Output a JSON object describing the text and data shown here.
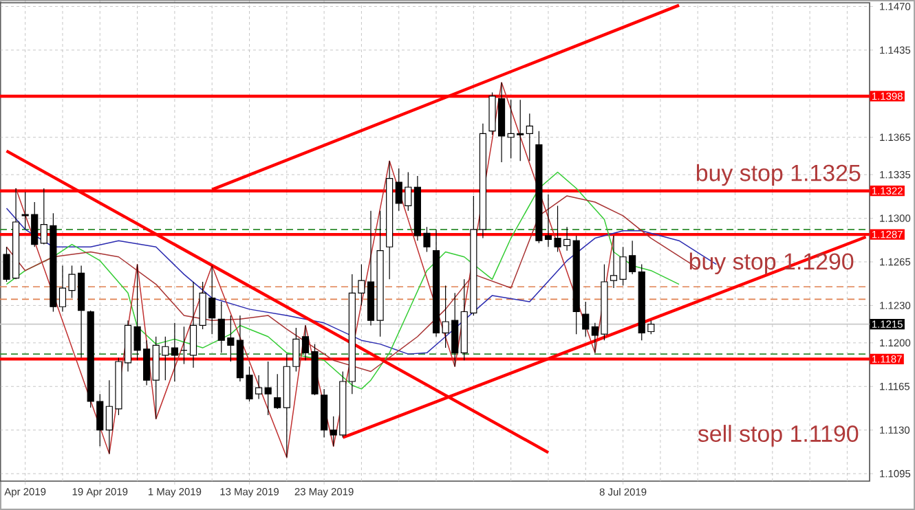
{
  "chart_data": {
    "type": "candlestick",
    "categories": [
      null,
      null,
      "Apr 2019",
      null,
      null,
      null,
      null,
      null,
      null,
      null,
      "19 Apr 2019",
      null,
      null,
      null,
      null,
      null,
      null,
      null,
      "1 May 2019",
      null,
      null,
      null,
      null,
      null,
      null,
      null,
      "13 May 2019",
      null,
      null,
      null,
      null,
      null,
      null,
      null,
      "23 May 2019",
      null,
      null,
      null,
      null,
      null,
      null,
      null,
      null,
      null,
      null,
      null,
      null,
      null,
      null,
      null,
      null,
      null,
      null,
      null,
      null,
      null,
      null,
      null,
      null,
      null,
      null,
      null,
      null,
      null,
      null,
      null,
      "8 Jul 2019",
      null,
      null,
      null,
      null,
      null,
      null,
      null,
      null,
      null,
      null,
      null,
      null,
      null,
      null,
      null,
      null,
      null,
      null,
      null,
      null,
      null,
      null,
      null,
      null,
      null,
      null
    ],
    "ohlc": [
      [
        1.1271,
        1.1277,
        1.1249,
        1.1251
      ],
      [
        1.1252,
        1.1324,
        1.1251,
        1.1297
      ],
      [
        1.1303,
        1.1321,
        1.1291,
        1.1302
      ],
      [
        1.1303,
        1.1313,
        1.1277,
        1.1279
      ],
      [
        1.128,
        1.1324,
        1.1279,
        1.1295
      ],
      [
        1.1294,
        1.1304,
        1.1225,
        1.1229
      ],
      [
        1.1229,
        1.1262,
        1.1225,
        1.1244
      ],
      [
        1.1242,
        1.1262,
        1.1236,
        1.1255
      ],
      [
        1.1256,
        1.1262,
        1.1188,
        1.1226
      ],
      [
        1.1225,
        1.1226,
        1.1148,
        1.1153
      ],
      [
        1.1153,
        1.1159,
        1.1117,
        1.113
      ],
      [
        1.113,
        1.117,
        1.1111,
        1.1149
      ],
      [
        1.1147,
        1.1188,
        1.1142,
        1.1185
      ],
      [
        1.1184,
        1.1218,
        1.1177,
        1.1214
      ],
      [
        1.1213,
        1.1263,
        1.1186,
        1.1194
      ],
      [
        1.1195,
        1.1202,
        1.1166,
        1.117
      ],
      [
        1.117,
        1.1205,
        1.1139,
        1.1198
      ],
      [
        1.119,
        1.1205,
        1.117,
        1.1197
      ],
      [
        1.1196,
        1.1216,
        1.1169,
        1.119
      ],
      [
        1.1194,
        1.1213,
        1.1183,
        1.1194
      ],
      [
        1.119,
        1.1249,
        1.118,
        1.1214
      ],
      [
        1.1214,
        1.1249,
        1.1211,
        1.124
      ],
      [
        1.1236,
        1.1262,
        1.1207,
        1.122
      ],
      [
        1.1219,
        1.1233,
        1.1192,
        1.1202
      ],
      [
        1.1204,
        1.1222,
        1.1185,
        1.1198
      ],
      [
        1.1202,
        1.1222,
        1.1169,
        1.1172
      ],
      [
        1.1174,
        1.1181,
        1.1153,
        1.1155
      ],
      [
        1.1159,
        1.1174,
        1.1155,
        1.1164
      ],
      [
        1.1164,
        1.1185,
        1.1142,
        1.1159
      ],
      [
        1.1156,
        1.1175,
        1.1147,
        1.1148
      ],
      [
        1.1148,
        1.1191,
        1.1108,
        1.1181
      ],
      [
        1.1181,
        1.1212,
        1.1177,
        1.1203
      ],
      [
        1.1205,
        1.1214,
        1.1186,
        1.1192
      ],
      [
        1.1193,
        1.1199,
        1.1158,
        1.1159
      ],
      [
        1.1158,
        1.1163,
        1.1124,
        1.113
      ],
      [
        1.113,
        1.1141,
        1.1117,
        1.1126
      ],
      [
        1.1126,
        1.1177,
        1.1124,
        1.1169
      ],
      [
        1.1169,
        1.1255,
        1.1159,
        1.124
      ],
      [
        1.124,
        1.1263,
        1.123,
        1.125
      ],
      [
        1.1249,
        1.1306,
        1.1214,
        1.1218
      ],
      [
        1.1218,
        1.1306,
        1.1205,
        1.1274
      ],
      [
        1.1277,
        1.1346,
        1.1251,
        1.1332
      ],
      [
        1.1329,
        1.134,
        1.1306,
        1.1312
      ],
      [
        1.131,
        1.1337,
        1.1306,
        1.1325
      ],
      [
        1.1325,
        1.1334,
        1.1282,
        1.1286
      ],
      [
        1.1288,
        1.1293,
        1.1273,
        1.1277
      ],
      [
        1.1274,
        1.1291,
        1.1205,
        1.1208
      ],
      [
        1.1208,
        1.1246,
        1.1196,
        1.1217
      ],
      [
        1.1218,
        1.124,
        1.1181,
        1.1192
      ],
      [
        1.1192,
        1.1251,
        1.1186,
        1.1225
      ],
      [
        1.1224,
        1.1318,
        1.1222,
        1.1291
      ],
      [
        1.1291,
        1.1376,
        1.1284,
        1.1368
      ],
      [
        1.137,
        1.1401,
        1.1367,
        1.1398
      ],
      [
        1.1396,
        1.1409,
        1.1345,
        1.1366
      ],
      [
        1.1365,
        1.1395,
        1.1348,
        1.1368
      ],
      [
        1.1368,
        1.1395,
        1.1346,
        1.1367
      ],
      [
        1.1368,
        1.1384,
        1.1346,
        1.1374
      ],
      [
        1.1359,
        1.137,
        1.128,
        1.1282
      ],
      [
        1.1286,
        1.1319,
        1.1277,
        1.1283
      ],
      [
        1.1284,
        1.131,
        1.1273,
        1.1277
      ],
      [
        1.1278,
        1.1293,
        1.1274,
        1.1283
      ],
      [
        1.1282,
        1.1286,
        1.1207,
        1.1225
      ],
      [
        1.1223,
        1.1233,
        1.1205,
        1.1211
      ],
      [
        1.1213,
        1.1216,
        1.1192,
        1.1206
      ],
      [
        1.1207,
        1.1263,
        1.1202,
        1.1249
      ],
      [
        1.125,
        1.1286,
        1.1244,
        1.1254
      ],
      [
        1.1251,
        1.1277,
        1.1246,
        1.1269
      ],
      [
        1.127,
        1.1282,
        1.1255,
        1.1257
      ],
      [
        1.1257,
        1.1263,
        1.1202,
        1.1208
      ],
      [
        1.1209,
        1.1218,
        1.1207,
        1.1215
      ],
      null,
      null,
      null,
      null,
      null,
      null,
      null,
      null,
      null,
      null,
      null,
      null,
      null,
      null,
      null,
      null,
      null,
      null,
      null,
      null,
      null,
      null,
      null
    ],
    "series": [
      {
        "type": "line",
        "color": "#2a2ab0",
        "values": [
          1.1308,
          null,
          1.1291,
          null,
          null,
          1.1277,
          null,
          null,
          null,
          1.1277,
          null,
          null,
          1.1282,
          null,
          null,
          null,
          1.1277,
          null,
          null,
          1.1255,
          null,
          null,
          1.1236,
          null,
          null,
          null,
          1.1227,
          null,
          null,
          null,
          1.1222,
          null,
          null,
          null,
          1.1216,
          null,
          null,
          null,
          1.1202,
          null,
          1.1199,
          null,
          null,
          1.1191,
          null,
          1.1192,
          null,
          1.1205,
          null,
          null,
          null,
          null,
          1.1238,
          null,
          null,
          null,
          1.1233,
          null,
          null,
          null,
          1.1266,
          null,
          null,
          1.1284,
          null,
          null,
          1.129,
          null,
          1.129,
          null,
          null,
          null,
          1.1282,
          null,
          null,
          null,
          1.1263,
          null,
          null,
          null,
          null,
          null,
          null,
          null,
          null,
          null,
          null,
          null,
          null,
          null,
          null,
          null,
          null
        ]
      },
      {
        "type": "line",
        "color": "#33cc33",
        "values": [
          1.1247,
          null,
          1.1258,
          null,
          null,
          1.1269,
          null,
          1.1279,
          null,
          null,
          1.1266,
          null,
          null,
          1.124,
          1.1213,
          null,
          1.1199,
          null,
          1.1203,
          null,
          null,
          1.1196,
          null,
          null,
          1.1207,
          1.1214,
          null,
          null,
          1.1205,
          null,
          1.1192,
          null,
          null,
          null,
          1.1186,
          null,
          null,
          1.1166,
          1.1163,
          1.117,
          null,
          1.1192,
          null,
          1.1225,
          null,
          1.1258,
          null,
          1.1273,
          null,
          1.1269,
          null,
          null,
          1.1251,
          null,
          1.1284,
          null,
          null,
          1.1324,
          null,
          1.1337,
          null,
          1.1324,
          null,
          null,
          1.1299,
          1.1273,
          null,
          1.1262,
          null,
          1.1258,
          null,
          null,
          1.1247,
          null,
          null,
          null,
          null,
          null,
          null,
          null,
          null,
          null,
          null,
          null,
          null,
          null,
          null,
          null,
          null,
          null,
          null,
          null,
          null
        ]
      },
      {
        "type": "line",
        "color": "#a83232",
        "values": [
          1.1277,
          null,
          1.1258,
          null,
          null,
          1.1269,
          null,
          null,
          null,
          1.1273,
          null,
          null,
          1.1269,
          null,
          null,
          null,
          1.1247,
          null,
          null,
          1.1222,
          null,
          null,
          1.1218,
          null,
          null,
          1.1219,
          null,
          null,
          1.1222,
          null,
          1.1211,
          null,
          null,
          1.1196,
          null,
          1.1186,
          null,
          null,
          null,
          1.1177,
          null,
          null,
          null,
          null,
          1.1205,
          null,
          null,
          1.1227,
          null,
          null,
          1.1255,
          null,
          null,
          null,
          1.1244,
          null,
          null,
          1.1302,
          null,
          null,
          1.1318,
          null,
          null,
          1.1313,
          null,
          null,
          1.1302,
          null,
          null,
          1.1284,
          null,
          null,
          null,
          null,
          1.126,
          null,
          null,
          null,
          null,
          null,
          null,
          null,
          null,
          null,
          null,
          null,
          null,
          null,
          null,
          null,
          null,
          null,
          null
        ]
      },
      {
        "type": "line",
        "color": "#c03030",
        "values": [
          null,
          1.1324,
          null,
          null,
          null,
          null,
          null,
          null,
          null,
          null,
          null,
          1.1111,
          null,
          null,
          1.1263,
          null,
          1.1139,
          null,
          null,
          null,
          null,
          null,
          1.1262,
          null,
          null,
          null,
          null,
          null,
          null,
          null,
          1.1108,
          null,
          1.1214,
          null,
          null,
          1.1117,
          null,
          null,
          null,
          null,
          null,
          1.1346,
          null,
          null,
          null,
          null,
          null,
          null,
          1.1181,
          null,
          null,
          null,
          null,
          1.1409,
          null,
          null,
          null,
          null,
          null,
          null,
          null,
          null,
          null,
          1.1192,
          null,
          1.1286,
          null,
          null,
          null,
          null,
          null,
          null,
          null,
          null,
          null,
          null,
          null,
          null,
          null,
          null,
          null,
          null,
          null,
          null,
          null,
          null,
          null,
          null,
          null,
          null,
          null,
          null,
          null
        ]
      },
      {
        "type": "line",
        "color": "#ff0000",
        "values": [
          null,
          null,
          null,
          null,
          null,
          null,
          null,
          null,
          null,
          null,
          null,
          null,
          null,
          null,
          null,
          null,
          null,
          null,
          null,
          null,
          null,
          null,
          1.1323,
          null,
          null,
          null,
          null,
          null,
          null,
          null,
          null,
          null,
          null,
          null,
          null,
          null,
          null,
          null,
          null,
          null,
          null,
          null,
          null,
          null,
          null,
          null,
          null,
          null,
          null,
          null,
          null,
          null,
          null,
          null,
          null,
          null,
          null,
          null,
          null,
          null,
          null,
          null,
          null,
          null,
          null,
          null,
          null,
          null,
          null,
          null,
          null,
          null,
          1.1471,
          null,
          null,
          null,
          null,
          null,
          null,
          null,
          null,
          null,
          null,
          null,
          null,
          null,
          null,
          null,
          null,
          null,
          null,
          null,
          null
        ]
      },
      {
        "type": "line",
        "color": "#ff0000",
        "values": [
          null,
          null,
          null,
          null,
          null,
          null,
          null,
          null,
          null,
          null,
          null,
          null,
          null,
          null,
          null,
          null,
          null,
          null,
          null,
          null,
          null,
          null,
          null,
          null,
          null,
          null,
          null,
          null,
          null,
          null,
          null,
          null,
          null,
          null,
          null,
          null,
          1.1124,
          null,
          null,
          null,
          null,
          null,
          null,
          null,
          null,
          null,
          null,
          null,
          null,
          null,
          null,
          null,
          null,
          null,
          null,
          null,
          null,
          null,
          null,
          null,
          null,
          null,
          null,
          null,
          null,
          null,
          null,
          null,
          null,
          null,
          null,
          null,
          null,
          null,
          null,
          null,
          null,
          null,
          null,
          null,
          null,
          null,
          null,
          null,
          null,
          null,
          null,
          null,
          null,
          null,
          null,
          null,
          1.1285
        ]
      },
      {
        "type": "line",
        "color": "#ff0000",
        "values": [
          1.1354,
          null,
          null,
          null,
          null,
          null,
          null,
          null,
          null,
          null,
          null,
          null,
          null,
          null,
          null,
          null,
          null,
          null,
          null,
          null,
          null,
          null,
          null,
          null,
          null,
          null,
          null,
          null,
          null,
          null,
          null,
          null,
          null,
          null,
          null,
          null,
          null,
          null,
          null,
          null,
          null,
          null,
          null,
          null,
          null,
          null,
          null,
          null,
          null,
          null,
          null,
          null,
          null,
          null,
          null,
          null,
          null,
          null,
          1.1112,
          null,
          null,
          null,
          null,
          null,
          null,
          null,
          null,
          null,
          null,
          null,
          null,
          null,
          null,
          null,
          null,
          null,
          null,
          null,
          null,
          null,
          null,
          null,
          null,
          null,
          null,
          null,
          null,
          null,
          null,
          null,
          null,
          null,
          null
        ]
      }
    ],
    "ylim": [
      1.1089,
      1.1473
    ],
    "yticks": [
      {
        "value": 1.1095,
        "label": "1.1095"
      },
      {
        "value": 1.113,
        "label": "1.1130"
      },
      {
        "value": 1.1165,
        "label": "1.1165"
      },
      {
        "value": 1.12,
        "label": "1.1200"
      },
      {
        "value": 1.123,
        "label": "1.1230"
      },
      {
        "value": 1.1265,
        "label": "1.1265"
      },
      {
        "value": 1.13,
        "label": "1.1300"
      },
      {
        "value": 1.1335,
        "label": "1.1335"
      },
      {
        "value": 1.1365,
        "label": "1.1365"
      },
      {
        "value": 1.1435,
        "label": "1.1435"
      },
      {
        "value": 1.147,
        "label": "1.1470"
      }
    ],
    "grid": true,
    "ref_lines": [
      {
        "axis": "y",
        "value": 1.1398,
        "label": "1.1398",
        "color": "#ff0000",
        "line_style": "solid"
      },
      {
        "axis": "y",
        "value": 1.1322,
        "label": "1.1322",
        "color": "#ff0000",
        "line_style": "solid"
      },
      {
        "axis": "y",
        "value": 1.1287,
        "label": "1.1287",
        "color": "#ff0000",
        "line_style": "solid"
      },
      {
        "axis": "y",
        "value": 1.1187,
        "label": "1.1187",
        "color": "#ff0000",
        "line_style": "solid"
      },
      {
        "axis": "y",
        "value": 1.1215,
        "label": "1.1215",
        "color": "#c8c8c8",
        "line_style": "solid"
      },
      {
        "axis": "y",
        "value": 1.1291,
        "color": "#2e8b2e",
        "line_style": "dashed"
      },
      {
        "axis": "y",
        "value": 1.1191,
        "color": "#2e8b2e",
        "line_style": "dashed"
      },
      {
        "axis": "y",
        "value": 1.1245,
        "color": "#e08050",
        "line_style": "dashed"
      },
      {
        "axis": "y",
        "value": 1.1235,
        "color": "#e08050",
        "line_style": "dashed"
      }
    ],
    "annotations": [
      "buy stop 1.1325",
      "buy stop 1.1290",
      "sell stop 1.1190"
    ]
  }
}
